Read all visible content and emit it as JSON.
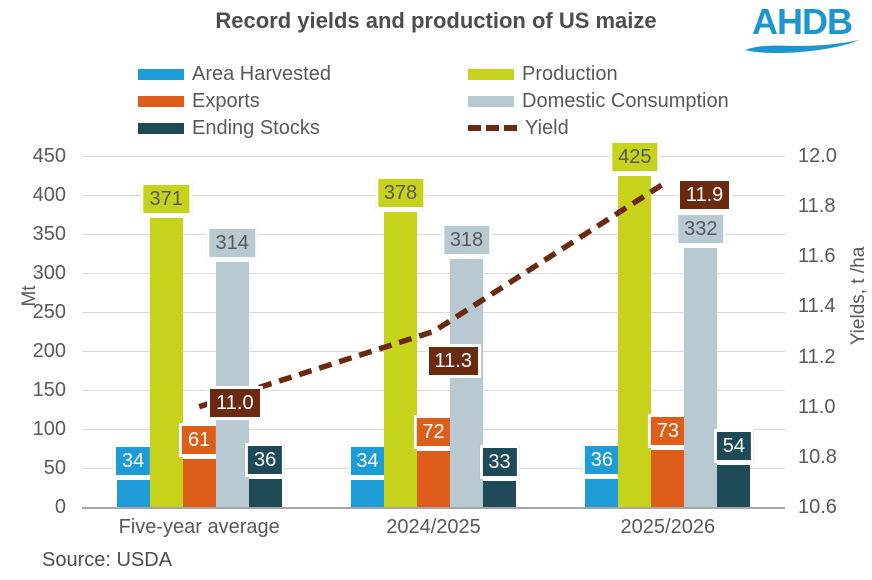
{
  "title": "Record yields and production of US maize",
  "logo": {
    "text": "AHDB",
    "color": "#1b96d1"
  },
  "source": "Source: USDA",
  "colors": {
    "area_harvested": "#1e9cd8",
    "production": "#c6d21c",
    "exports": "#dc5e1a",
    "domestic_consumption": "#b8c9d2",
    "ending_stocks": "#1d4a56",
    "yield_line": "#6b2a10",
    "gridline": "#d9d9d9",
    "axis_line": "#a6a6a6",
    "text": "#595959",
    "title_text": "#4d4d4d"
  },
  "legend": {
    "columns": [
      {
        "items": [
          {
            "label": "Area Harvested",
            "swatch": "bar",
            "color": "#1e9cd8"
          },
          {
            "label": "Exports",
            "swatch": "bar",
            "color": "#dc5e1a"
          },
          {
            "label": "Ending Stocks",
            "swatch": "bar",
            "color": "#1d4a56"
          }
        ]
      },
      {
        "items": [
          {
            "label": "Production",
            "swatch": "bar",
            "color": "#c6d21c"
          },
          {
            "label": "Domestic Consumption",
            "swatch": "bar",
            "color": "#b8c9d2"
          },
          {
            "label": "Yield",
            "swatch": "dash",
            "color": "#6b2a10"
          }
        ]
      }
    ]
  },
  "chart_data": {
    "type": "bar",
    "title": "Record yields and production of US maize",
    "categories": [
      "Five-year average",
      "2024/2025",
      "2025/2026"
    ],
    "series": [
      {
        "name": "Area Harvested",
        "values": [
          34,
          34,
          36
        ],
        "color": "#1e9cd8",
        "label_color": "#ffffff"
      },
      {
        "name": "Production",
        "values": [
          371,
          378,
          425
        ],
        "color": "#c6d21c",
        "label_color": "#595959"
      },
      {
        "name": "Exports",
        "values": [
          61,
          72,
          73
        ],
        "color": "#dc5e1a",
        "label_color": "#ffffff"
      },
      {
        "name": "Domestic Consumption",
        "values": [
          314,
          318,
          332
        ],
        "color": "#b8c9d2",
        "label_color": "#595959"
      },
      {
        "name": "Ending Stocks",
        "values": [
          36,
          33,
          54
        ],
        "color": "#1d4a56",
        "label_color": "#ffffff"
      }
    ],
    "line_series": {
      "name": "Yield",
      "axis": "right",
      "values": [
        11.0,
        11.3,
        11.9
      ],
      "labels": [
        "11.0",
        "11.3",
        "11.9"
      ],
      "color": "#6b2a10",
      "label_color": "#ffffff"
    },
    "left_axis": {
      "title": "Mt",
      "min": 0,
      "max": 450,
      "step": 50,
      "ticks": [
        "0",
        "50",
        "100",
        "150",
        "200",
        "250",
        "300",
        "350",
        "400",
        "450"
      ]
    },
    "right_axis": {
      "title": "Yields, t /ha",
      "min": 10.6,
      "max": 12.0,
      "step": 0.2,
      "ticks": [
        "10.6",
        "10.8",
        "11.0",
        "11.2",
        "11.4",
        "11.6",
        "11.8",
        "12.0"
      ]
    },
    "grid": true,
    "legend_position": "top"
  }
}
